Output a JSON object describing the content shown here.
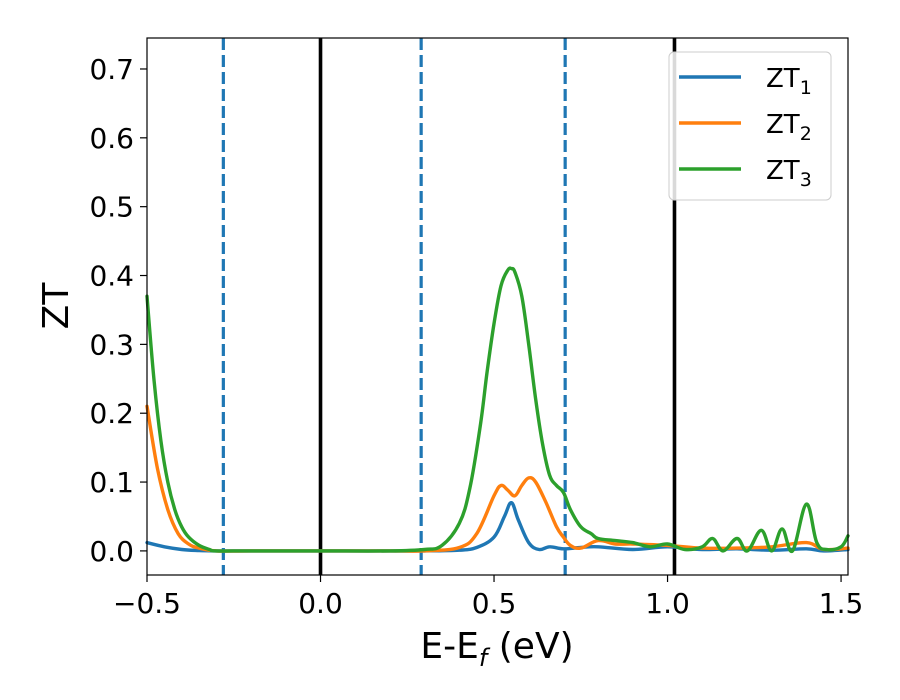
{
  "chart_data": {
    "type": "line",
    "xlabel_main": "E-E",
    "xlabel_sub": "f",
    "xlabel_tail": " (eV)",
    "ylabel": "ZT",
    "xlim": [
      -0.5,
      1.52
    ],
    "ylim": [
      -0.035,
      0.745
    ],
    "x_ticks": [
      -0.5,
      0.0,
      0.5,
      1.0,
      1.5
    ],
    "x_tick_labels": [
      "−0.5",
      "0.0",
      "0.5",
      "1.0",
      "1.5"
    ],
    "y_ticks": [
      0.0,
      0.1,
      0.2,
      0.3,
      0.4,
      0.5,
      0.6,
      0.7
    ],
    "y_tick_labels": [
      "0.0",
      "0.1",
      "0.2",
      "0.3",
      "0.4",
      "0.5",
      "0.6",
      "0.7"
    ],
    "grid": false,
    "legend_position": "top-right",
    "series": [
      {
        "name": "ZT1",
        "label_main": "ZT",
        "label_sub": "1",
        "color": "#1f77b4",
        "x": [
          -0.5,
          -0.45,
          -0.4,
          -0.35,
          -0.3,
          -0.2,
          0.0,
          0.2,
          0.3,
          0.4,
          0.45,
          0.5,
          0.53,
          0.55,
          0.57,
          0.6,
          0.63,
          0.66,
          0.7,
          0.75,
          0.8,
          0.9,
          1.0,
          1.1,
          1.2,
          1.3,
          1.4,
          1.45,
          1.52
        ],
        "y": [
          0.012,
          0.006,
          0.002,
          0.0005,
          0.0,
          0.0,
          0.0,
          0.0,
          0.0,
          0.001,
          0.005,
          0.02,
          0.05,
          0.07,
          0.045,
          0.012,
          0.002,
          0.006,
          0.003,
          0.005,
          0.006,
          0.002,
          0.006,
          0.002,
          0.003,
          0.001,
          0.003,
          0.0,
          0.002
        ]
      },
      {
        "name": "ZT2",
        "label_main": "ZT",
        "label_sub": "2",
        "color": "#ff7f0e",
        "x": [
          -0.5,
          -0.47,
          -0.44,
          -0.41,
          -0.38,
          -0.35,
          -0.3,
          -0.2,
          0.0,
          0.2,
          0.3,
          0.4,
          0.45,
          0.5,
          0.52,
          0.54,
          0.56,
          0.58,
          0.6,
          0.62,
          0.65,
          0.68,
          0.7,
          0.72,
          0.75,
          0.8,
          0.85,
          0.9,
          1.0,
          1.1,
          1.2,
          1.3,
          1.4,
          1.45,
          1.52
        ],
        "y": [
          0.21,
          0.12,
          0.06,
          0.025,
          0.01,
          0.004,
          0.0,
          0.0,
          0.0,
          0.0,
          0.0,
          0.005,
          0.025,
          0.08,
          0.095,
          0.088,
          0.08,
          0.095,
          0.106,
          0.1,
          0.07,
          0.035,
          0.02,
          0.008,
          0.004,
          0.015,
          0.01,
          0.01,
          0.008,
          0.004,
          0.004,
          0.006,
          0.012,
          0.002,
          0.004
        ]
      },
      {
        "name": "ZT3",
        "label_main": "ZT",
        "label_sub": "3",
        "color": "#2ca02c",
        "x": [
          -0.5,
          -0.48,
          -0.46,
          -0.44,
          -0.42,
          -0.4,
          -0.38,
          -0.35,
          -0.32,
          -0.3,
          -0.2,
          0.0,
          0.2,
          0.3,
          0.35,
          0.4,
          0.43,
          0.46,
          0.48,
          0.5,
          0.52,
          0.54,
          0.55,
          0.56,
          0.58,
          0.6,
          0.62,
          0.64,
          0.66,
          0.68,
          0.7,
          0.72,
          0.75,
          0.78,
          0.8,
          0.85,
          0.9,
          0.95,
          1.0,
          1.05,
          1.1,
          1.13,
          1.16,
          1.2,
          1.23,
          1.27,
          1.3,
          1.33,
          1.36,
          1.4,
          1.43,
          1.46,
          1.5,
          1.52
        ],
        "y": [
          0.37,
          0.25,
          0.16,
          0.1,
          0.06,
          0.035,
          0.02,
          0.008,
          0.002,
          0.0,
          0.0,
          0.0,
          0.0,
          0.002,
          0.008,
          0.04,
          0.09,
          0.18,
          0.26,
          0.33,
          0.385,
          0.408,
          0.41,
          0.405,
          0.37,
          0.3,
          0.22,
          0.155,
          0.11,
          0.095,
          0.085,
          0.06,
          0.035,
          0.025,
          0.018,
          0.015,
          0.012,
          0.006,
          0.01,
          0.002,
          0.006,
          0.018,
          0.0,
          0.018,
          0.0,
          0.03,
          0.0,
          0.032,
          0.0,
          0.068,
          0.012,
          0.002,
          0.006,
          0.022
        ]
      }
    ],
    "vlines": [
      {
        "x": -0.28,
        "style": "dashed",
        "color": "#1f77b4"
      },
      {
        "x": 0.0,
        "style": "solid",
        "color": "#000000"
      },
      {
        "x": 0.29,
        "style": "dashed",
        "color": "#1f77b4"
      },
      {
        "x": 0.705,
        "style": "dashed",
        "color": "#1f77b4"
      },
      {
        "x": 1.02,
        "style": "solid",
        "color": "#000000"
      }
    ]
  }
}
